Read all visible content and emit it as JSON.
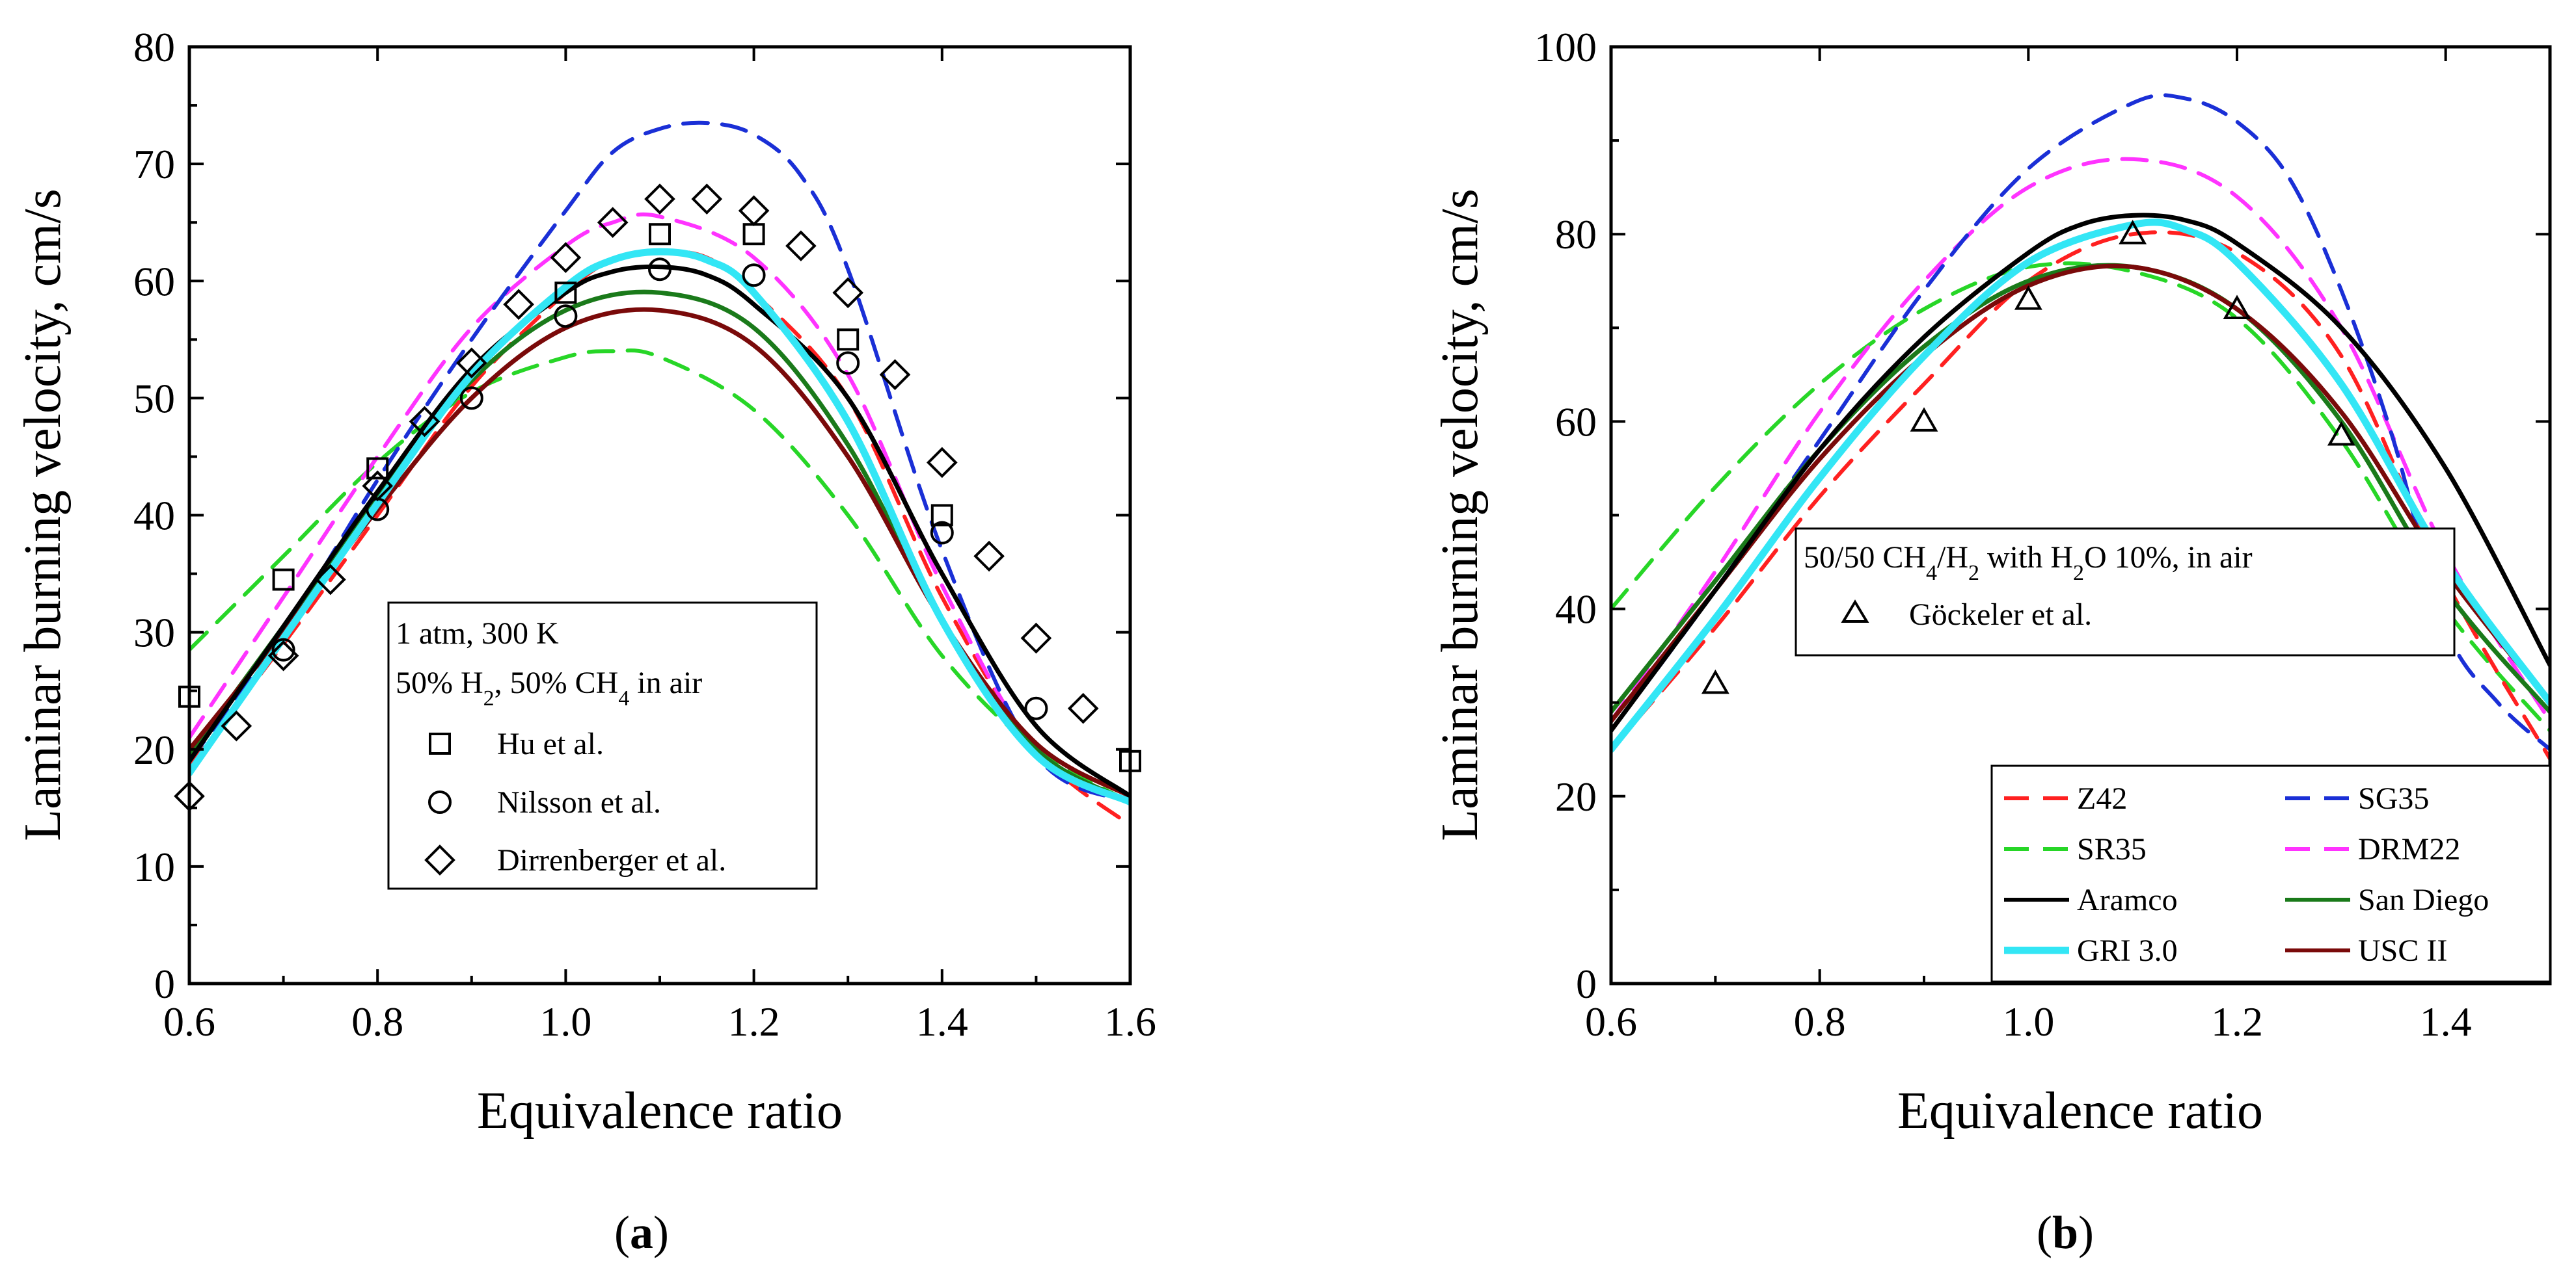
{
  "chart_data": [
    {
      "type": "line",
      "panel_label": "a",
      "xlabel": "Equivalence ratio",
      "ylabel": "Laminar burning velocity, cm/s",
      "xlim": [
        0.6,
        1.6
      ],
      "ylim": [
        0,
        80
      ],
      "xticks": [
        0.6,
        0.8,
        1.0,
        1.2,
        1.4,
        1.6
      ],
      "xtick_labels": [
        "0.6",
        "0.8",
        "1.0",
        "1.2",
        "1.4",
        "1.6"
      ],
      "yticks": [
        0,
        10,
        20,
        30,
        40,
        50,
        60,
        70,
        80
      ],
      "ytick_labels": [
        "0",
        "10",
        "20",
        "30",
        "40",
        "50",
        "60",
        "70",
        "80"
      ],
      "legend_title_1": "1 atm, 300 K",
      "legend_title_2": "50% H",
      "legend_sub_h2": "2",
      "legend_title_3": ", 50% CH",
      "legend_sub_ch4": "4",
      "legend_title_4": " in air",
      "series": [
        {
          "name": "Z42",
          "color": "#ff2020",
          "dash": "dashed",
          "x": [
            0.6,
            0.7,
            0.8,
            0.9,
            1.0,
            1.05,
            1.1,
            1.15,
            1.2,
            1.3,
            1.4,
            1.5,
            1.6
          ],
          "y": [
            18.5,
            29,
            40,
            51,
            59,
            61.8,
            62.5,
            62,
            59,
            50,
            33,
            20,
            13.5
          ]
        },
        {
          "name": "SG35",
          "color": "#1a2fd6",
          "dash": "dashed",
          "x": [
            0.6,
            0.7,
            0.8,
            0.9,
            1.0,
            1.05,
            1.1,
            1.15,
            1.2,
            1.25,
            1.3,
            1.4,
            1.5,
            1.6
          ],
          "y": [
            19,
            30,
            43,
            55,
            66,
            71,
            73,
            73.5,
            72.5,
            69,
            61,
            37,
            19.5,
            15.5
          ]
        },
        {
          "name": "SR35",
          "color": "#27d627",
          "dash": "dashed",
          "x": [
            0.6,
            0.7,
            0.8,
            0.9,
            1.0,
            1.05,
            1.1,
            1.2,
            1.3,
            1.4,
            1.5,
            1.6
          ],
          "y": [
            28.5,
            36.5,
            44.5,
            50.5,
            53.5,
            54,
            53.5,
            49,
            40,
            28,
            20,
            15.5
          ]
        },
        {
          "name": "DRM22",
          "color": "#ff33ff",
          "dash": "dashed",
          "x": [
            0.6,
            0.7,
            0.8,
            0.9,
            1.0,
            1.05,
            1.1,
            1.2,
            1.3,
            1.4,
            1.5,
            1.6
          ],
          "y": [
            21,
            33,
            45,
            56,
            63,
            65,
            65.5,
            62,
            52,
            34,
            20,
            15.5
          ]
        },
        {
          "name": "Aramco",
          "color": "#000000",
          "dash": "solid",
          "x": [
            0.6,
            0.7,
            0.8,
            0.9,
            1.0,
            1.05,
            1.1,
            1.15,
            1.2,
            1.3,
            1.4,
            1.5,
            1.6
          ],
          "y": [
            19,
            30.5,
            42,
            52.5,
            59,
            60.8,
            61.2,
            60.5,
            58,
            50,
            35,
            22,
            16
          ]
        },
        {
          "name": "San Diego",
          "color": "#1a7a1a",
          "dash": "solid",
          "x": [
            0.6,
            0.7,
            0.8,
            0.9,
            1.0,
            1.1,
            1.2,
            1.3,
            1.4,
            1.5,
            1.6
          ],
          "y": [
            19.5,
            30.5,
            41.5,
            51.5,
            57.5,
            59,
            56,
            46,
            31,
            20,
            15.5
          ]
        },
        {
          "name": "GRI 3.0",
          "color": "#33e6f5",
          "dash": "solid",
          "x": [
            0.6,
            0.7,
            0.8,
            0.9,
            1.0,
            1.05,
            1.1,
            1.15,
            1.2,
            1.3,
            1.4,
            1.5,
            1.6
          ],
          "y": [
            18,
            29.5,
            41,
            52,
            59.5,
            61.8,
            62.5,
            61.8,
            59,
            48,
            31,
            19.5,
            15.5
          ]
        },
        {
          "name": "USC II",
          "color": "#7a0a0a",
          "dash": "solid",
          "x": [
            0.6,
            0.7,
            0.8,
            0.9,
            1.0,
            1.1,
            1.2,
            1.3,
            1.4,
            1.5,
            1.6
          ],
          "y": [
            20,
            30,
            40.5,
            50,
            56,
            57.5,
            54.5,
            45,
            31,
            20.5,
            16
          ]
        }
      ],
      "experiments": [
        {
          "name": "Hu et al.",
          "marker": "square",
          "x": [
            0.6,
            0.7,
            0.8,
            1.0,
            1.1,
            1.2,
            1.3,
            1.4,
            1.6
          ],
          "y": [
            24.5,
            34.5,
            44,
            59,
            64,
            64,
            55,
            40,
            19
          ]
        },
        {
          "name": "Nilsson et al.",
          "marker": "circle",
          "x": [
            0.7,
            0.8,
            0.9,
            1.0,
            1.1,
            1.2,
            1.3,
            1.4,
            1.5
          ],
          "y": [
            28.5,
            40.5,
            50,
            57,
            61,
            60.5,
            53,
            38.5,
            23.5
          ]
        },
        {
          "name": "Dirrenberger et al.",
          "marker": "diamond",
          "x": [
            0.6,
            0.65,
            0.7,
            0.75,
            0.8,
            0.85,
            0.9,
            0.95,
            1.0,
            1.05,
            1.1,
            1.15,
            1.2,
            1.25,
            1.3,
            1.35,
            1.4,
            1.45,
            1.5,
            1.55
          ],
          "y": [
            16,
            22,
            28,
            34.5,
            42.5,
            48,
            53,
            58,
            62,
            65,
            67,
            67,
            66,
            63,
            59,
            52,
            44.5,
            36.5,
            29.5,
            23.5
          ]
        }
      ]
    },
    {
      "type": "line",
      "panel_label": "b",
      "xlabel": "Equivalence ratio",
      "ylabel": "Laminar burning velocity, cm/s",
      "xlim": [
        0.6,
        1.5
      ],
      "ylim": [
        0,
        100
      ],
      "xticks": [
        0.6,
        0.8,
        1.0,
        1.2,
        1.4
      ],
      "xtick_labels": [
        "0.6",
        "0.8",
        "1.0",
        "1.2",
        "1.4"
      ],
      "yticks": [
        0,
        20,
        40,
        60,
        80,
        100
      ],
      "ytick_labels": [
        "0",
        "20",
        "40",
        "60",
        "80",
        "100"
      ],
      "legend_title_1": "50/50 CH",
      "legend_sub_ch4": "4",
      "legend_title_2": "/H",
      "legend_sub_h2": "2",
      "legend_title_3": " with H",
      "legend_sub_h2o": "2",
      "legend_title_4": "O 10%, in air",
      "series": [
        {
          "name": "Z42",
          "color": "#ff2020",
          "dash": "dashed",
          "x": [
            0.6,
            0.7,
            0.8,
            0.9,
            1.0,
            1.1,
            1.2,
            1.3,
            1.4,
            1.5
          ],
          "y": [
            25,
            38,
            52,
            64,
            75,
            80,
            78,
            67,
            43,
            24
          ]
        },
        {
          "name": "SG35",
          "color": "#1a2fd6",
          "dash": "dashed",
          "x": [
            0.6,
            0.7,
            0.8,
            0.9,
            1.0,
            1.1,
            1.15,
            1.2,
            1.25,
            1.3,
            1.35,
            1.4,
            1.45,
            1.5
          ],
          "y": [
            27,
            42,
            58,
            74,
            87,
            94,
            94.5,
            92,
            86,
            74,
            58,
            38,
            30,
            25
          ]
        },
        {
          "name": "SR35",
          "color": "#27d627",
          "dash": "dashed",
          "x": [
            0.6,
            0.7,
            0.8,
            0.9,
            1.0,
            1.1,
            1.2,
            1.3,
            1.4,
            1.5
          ],
          "y": [
            40,
            53,
            64,
            72,
            76.5,
            76,
            71,
            58,
            40,
            27
          ]
        },
        {
          "name": "DRM22",
          "color": "#ff33ff",
          "dash": "dashed",
          "x": [
            0.6,
            0.7,
            0.8,
            0.9,
            1.0,
            1.1,
            1.2,
            1.3,
            1.4,
            1.5
          ],
          "y": [
            28,
            44,
            61,
            75,
            85,
            88,
            84,
            70,
            46,
            28
          ]
        },
        {
          "name": "Aramco",
          "color": "#000000",
          "dash": "solid",
          "x": [
            0.6,
            0.7,
            0.8,
            0.9,
            1.0,
            1.05,
            1.1,
            1.15,
            1.2,
            1.3,
            1.4,
            1.5
          ],
          "y": [
            27,
            42,
            57,
            69,
            78,
            81,
            82,
            81.5,
            79,
            70,
            55,
            34
          ]
        },
        {
          "name": "San Diego",
          "color": "#1a7a1a",
          "dash": "solid",
          "x": [
            0.6,
            0.7,
            0.8,
            0.9,
            1.0,
            1.1,
            1.2,
            1.3,
            1.4,
            1.5
          ],
          "y": [
            29,
            43,
            57,
            68,
            75,
            76.5,
            72,
            60,
            42,
            29
          ]
        },
        {
          "name": "GRI 3.0",
          "color": "#33e6f5",
          "dash": "solid",
          "x": [
            0.6,
            0.7,
            0.8,
            0.9,
            1.0,
            1.1,
            1.15,
            1.2,
            1.3,
            1.4,
            1.5
          ],
          "y": [
            25,
            39,
            54,
            67,
            77,
            81,
            80.5,
            77,
            64,
            45,
            30
          ]
        },
        {
          "name": "USC II",
          "color": "#7a0a0a",
          "dash": "solid",
          "x": [
            0.6,
            0.7,
            0.8,
            0.9,
            1.0,
            1.1,
            1.2,
            1.3,
            1.4,
            1.5
          ],
          "y": [
            28,
            42,
            56,
            67,
            74.5,
            76.5,
            72,
            61,
            44,
            30
          ]
        }
      ],
      "experiments": [
        {
          "name": "Göckeler et al.",
          "marker": "triangle",
          "x": [
            0.7,
            0.9,
            1.0,
            1.1,
            1.2,
            1.3
          ],
          "y": [
            32,
            60,
            73,
            80,
            72,
            58.5
          ]
        }
      ]
    }
  ],
  "legend_lines": [
    {
      "name": "Z42",
      "color": "#ff2020",
      "dash": "dashed"
    },
    {
      "name": "SG35",
      "color": "#1a2fd6",
      "dash": "dashed"
    },
    {
      "name": "SR35",
      "color": "#27d627",
      "dash": "dashed"
    },
    {
      "name": "DRM22",
      "color": "#ff33ff",
      "dash": "dashed"
    },
    {
      "name": "Aramco",
      "color": "#000000",
      "dash": "solid"
    },
    {
      "name": "San Diego",
      "color": "#1a7a1a",
      "dash": "solid"
    },
    {
      "name": "GRI 3.0",
      "color": "#33e6f5",
      "dash": "solid"
    },
    {
      "name": "USC II",
      "color": "#7a0a0a",
      "dash": "solid"
    }
  ],
  "captions": {
    "a": "a",
    "b": "b",
    "open_paren": "(",
    "close_paren": ")"
  }
}
